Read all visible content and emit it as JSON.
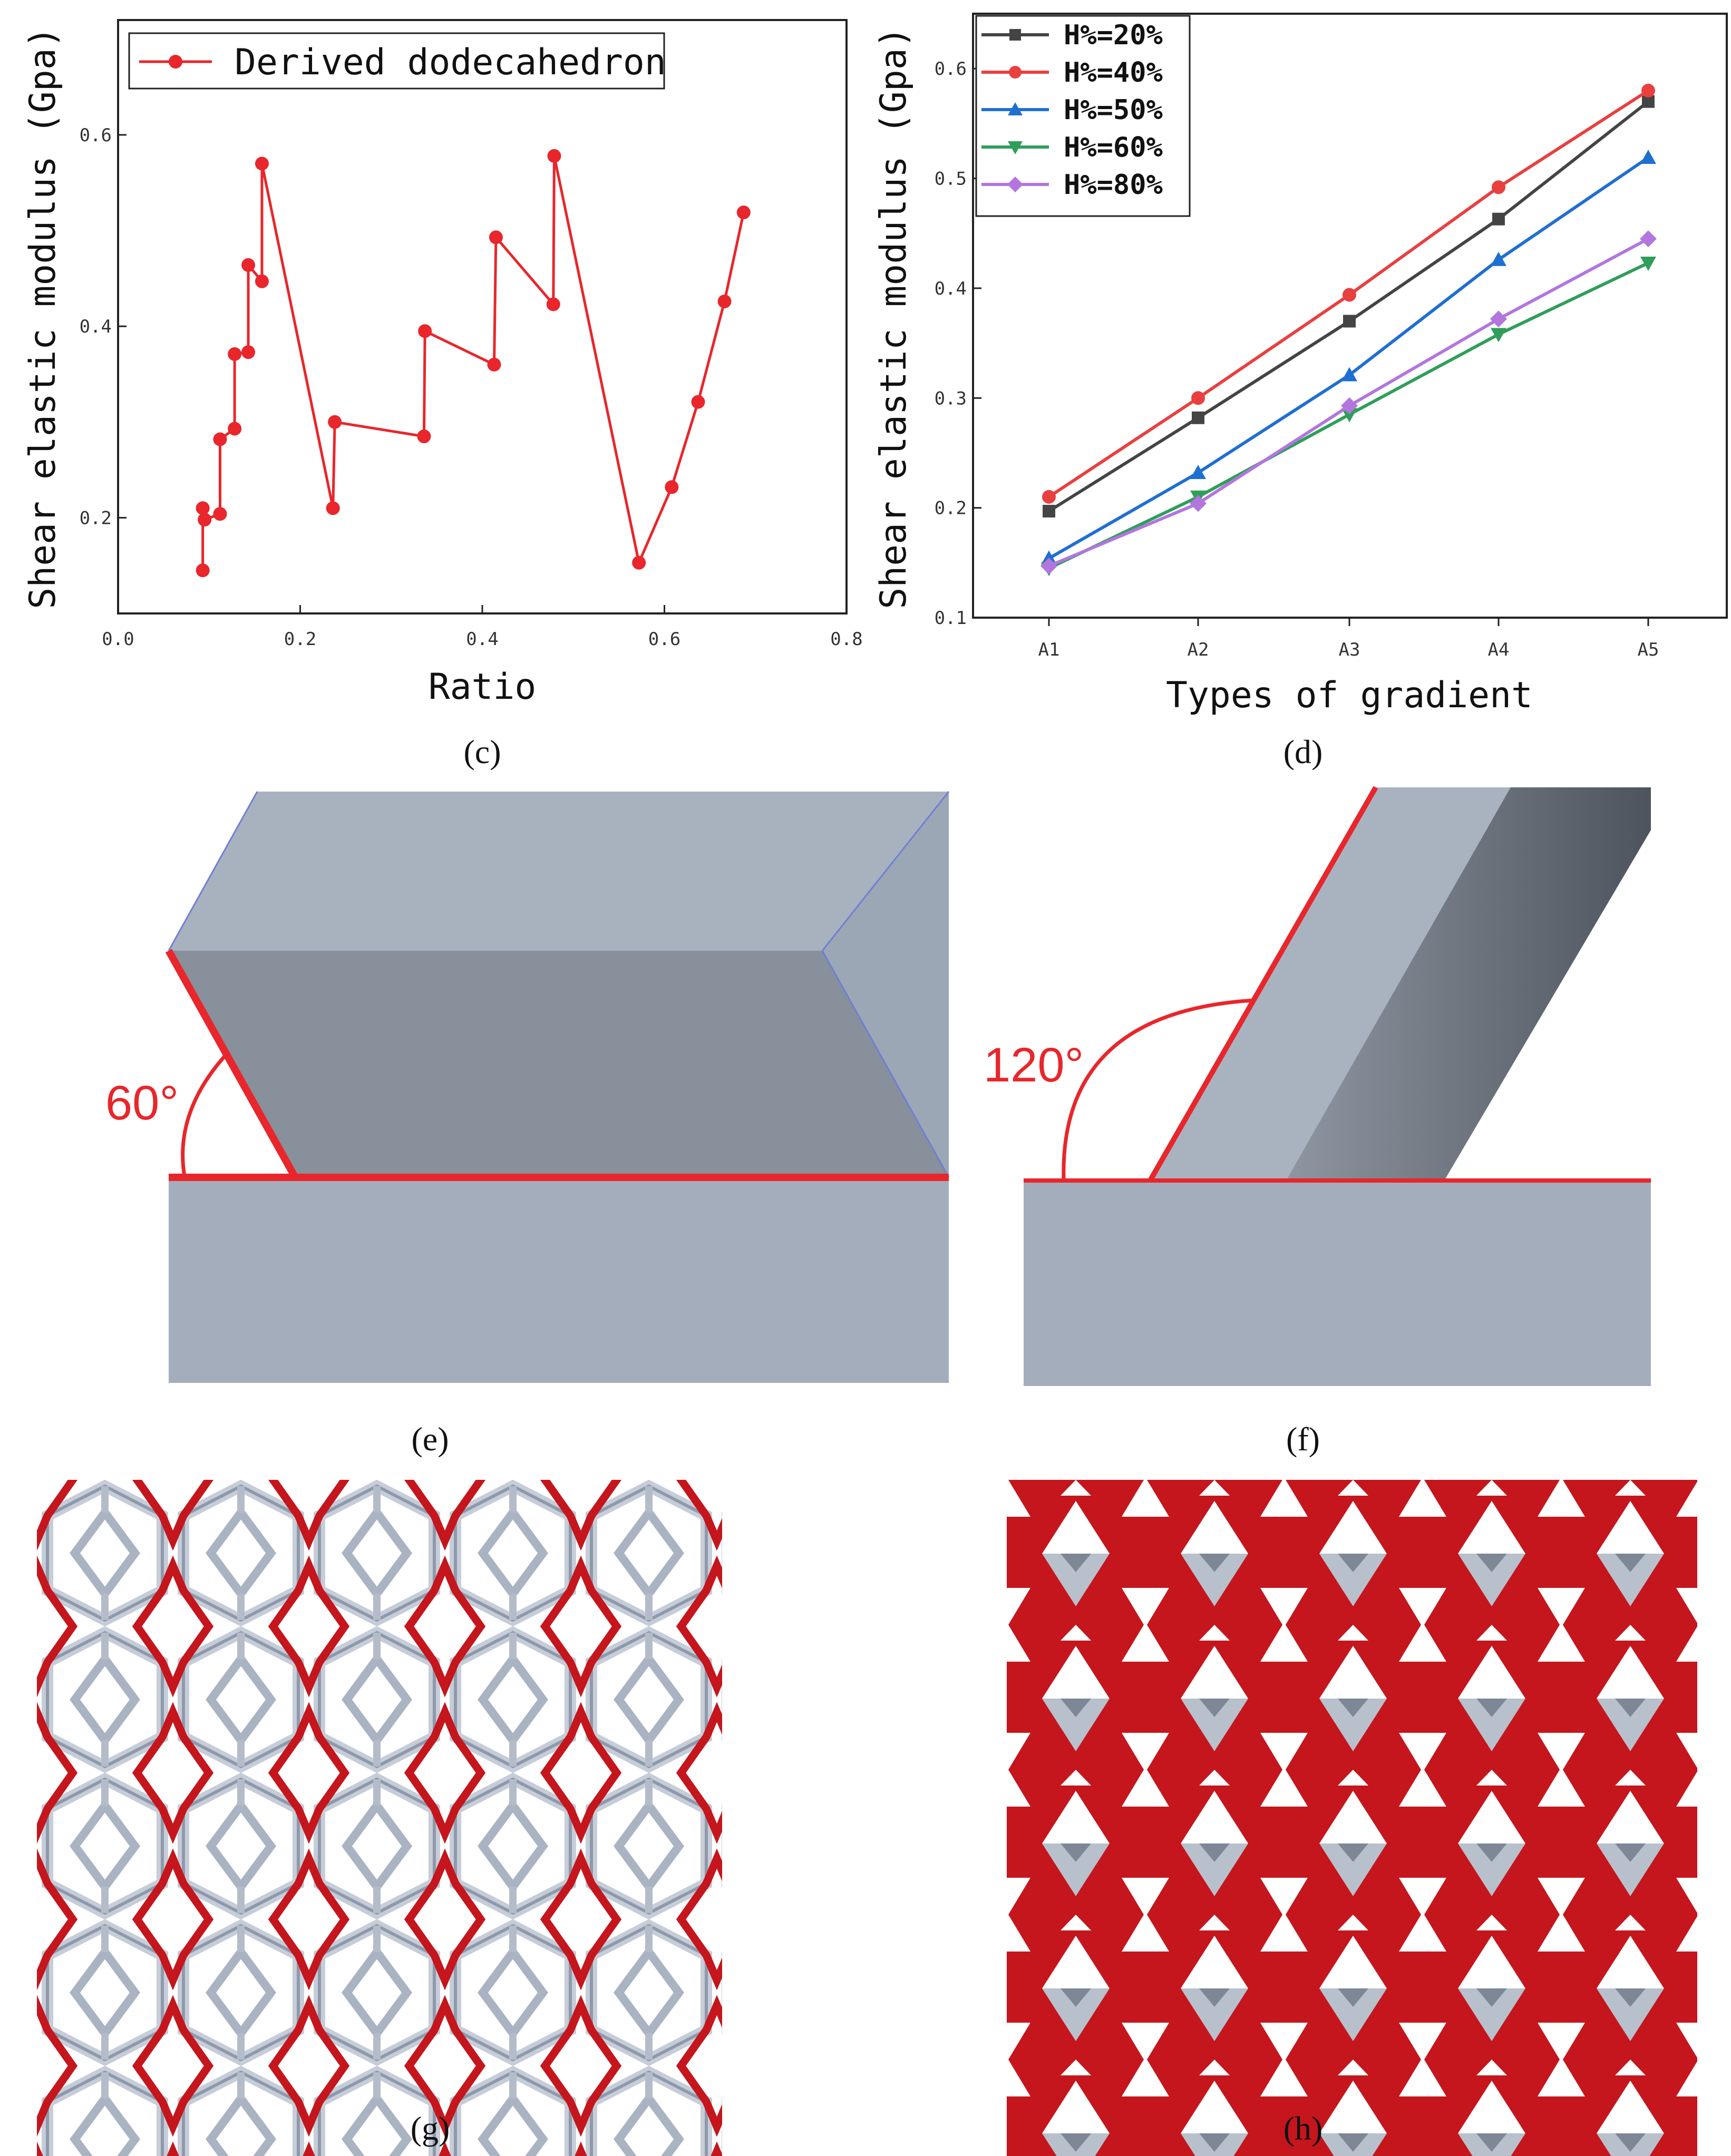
{
  "chart_data": [
    {
      "type": "line",
      "panel": "c",
      "title": "",
      "xlabel": "Ratio",
      "ylabel": "Shear elastic modulus (Gpa)",
      "xlim": [
        0.0,
        0.8
      ],
      "ylim": [
        0.1,
        0.72
      ],
      "xticks": [
        "0.0",
        "0.2",
        "0.4",
        "0.6",
        "0.8"
      ],
      "yticks": [
        "0.2",
        "0.4",
        "0.6"
      ],
      "legend_position": "top-left",
      "series": [
        {
          "name": "Derived dodecahedron",
          "color": "#e8262b",
          "x": [
            0.093,
            0.093,
            0.095,
            0.112,
            0.112,
            0.128,
            0.128,
            0.143,
            0.143,
            0.158,
            0.158,
            0.236,
            0.238,
            0.336,
            0.337,
            0.413,
            0.415,
            0.478,
            0.479,
            0.572,
            0.608,
            0.637,
            0.666,
            0.687
          ],
          "y": [
            0.145,
            0.21,
            0.198,
            0.204,
            0.282,
            0.293,
            0.371,
            0.373,
            0.464,
            0.447,
            0.57,
            0.21,
            0.3,
            0.285,
            0.395,
            0.36,
            0.493,
            0.423,
            0.578,
            0.153,
            0.232,
            0.321,
            0.426,
            0.519
          ]
        }
      ]
    },
    {
      "type": "line",
      "panel": "d",
      "title": "",
      "xlabel": "Types of gradient",
      "ylabel": "Shear elastic modulus (Gpa)",
      "categories": [
        "A1",
        "A2",
        "A3",
        "A4",
        "A5"
      ],
      "ylim": [
        0.1,
        0.65
      ],
      "yticks": [
        "0.1",
        "0.2",
        "0.3",
        "0.4",
        "0.5",
        "0.6"
      ],
      "legend_position": "top-left",
      "series": [
        {
          "name": "H%=20%",
          "color": "#444444",
          "marker": "square",
          "values": [
            0.197,
            0.282,
            0.37,
            0.463,
            0.57
          ]
        },
        {
          "name": "H%=40%",
          "color": "#e8403f",
          "marker": "circle",
          "values": [
            0.21,
            0.3,
            0.394,
            0.492,
            0.58
          ]
        },
        {
          "name": "H%=50%",
          "color": "#1f6fd1",
          "marker": "triangle-up",
          "values": [
            0.154,
            0.232,
            0.321,
            0.426,
            0.519
          ]
        },
        {
          "name": "H%=60%",
          "color": "#2f9e5a",
          "marker": "triangle-down",
          "values": [
            0.145,
            0.21,
            0.285,
            0.358,
            0.423
          ]
        },
        {
          "name": "H%=80%",
          "color": "#b276de",
          "marker": "diamond",
          "values": [
            0.147,
            0.204,
            0.293,
            0.372,
            0.445
          ]
        }
      ]
    }
  ],
  "panel_labels": {
    "c": "(c)",
    "d": "(d)",
    "e": "(e)",
    "f": "(f)",
    "g": "(g)",
    "h": "(h)"
  },
  "angles": {
    "e": "60°",
    "f": "120°"
  },
  "colors": {
    "red": "#e8262b",
    "lattice_red": "#c4161c",
    "block_light": "#a3adbb",
    "block_dark": "#87909b"
  }
}
